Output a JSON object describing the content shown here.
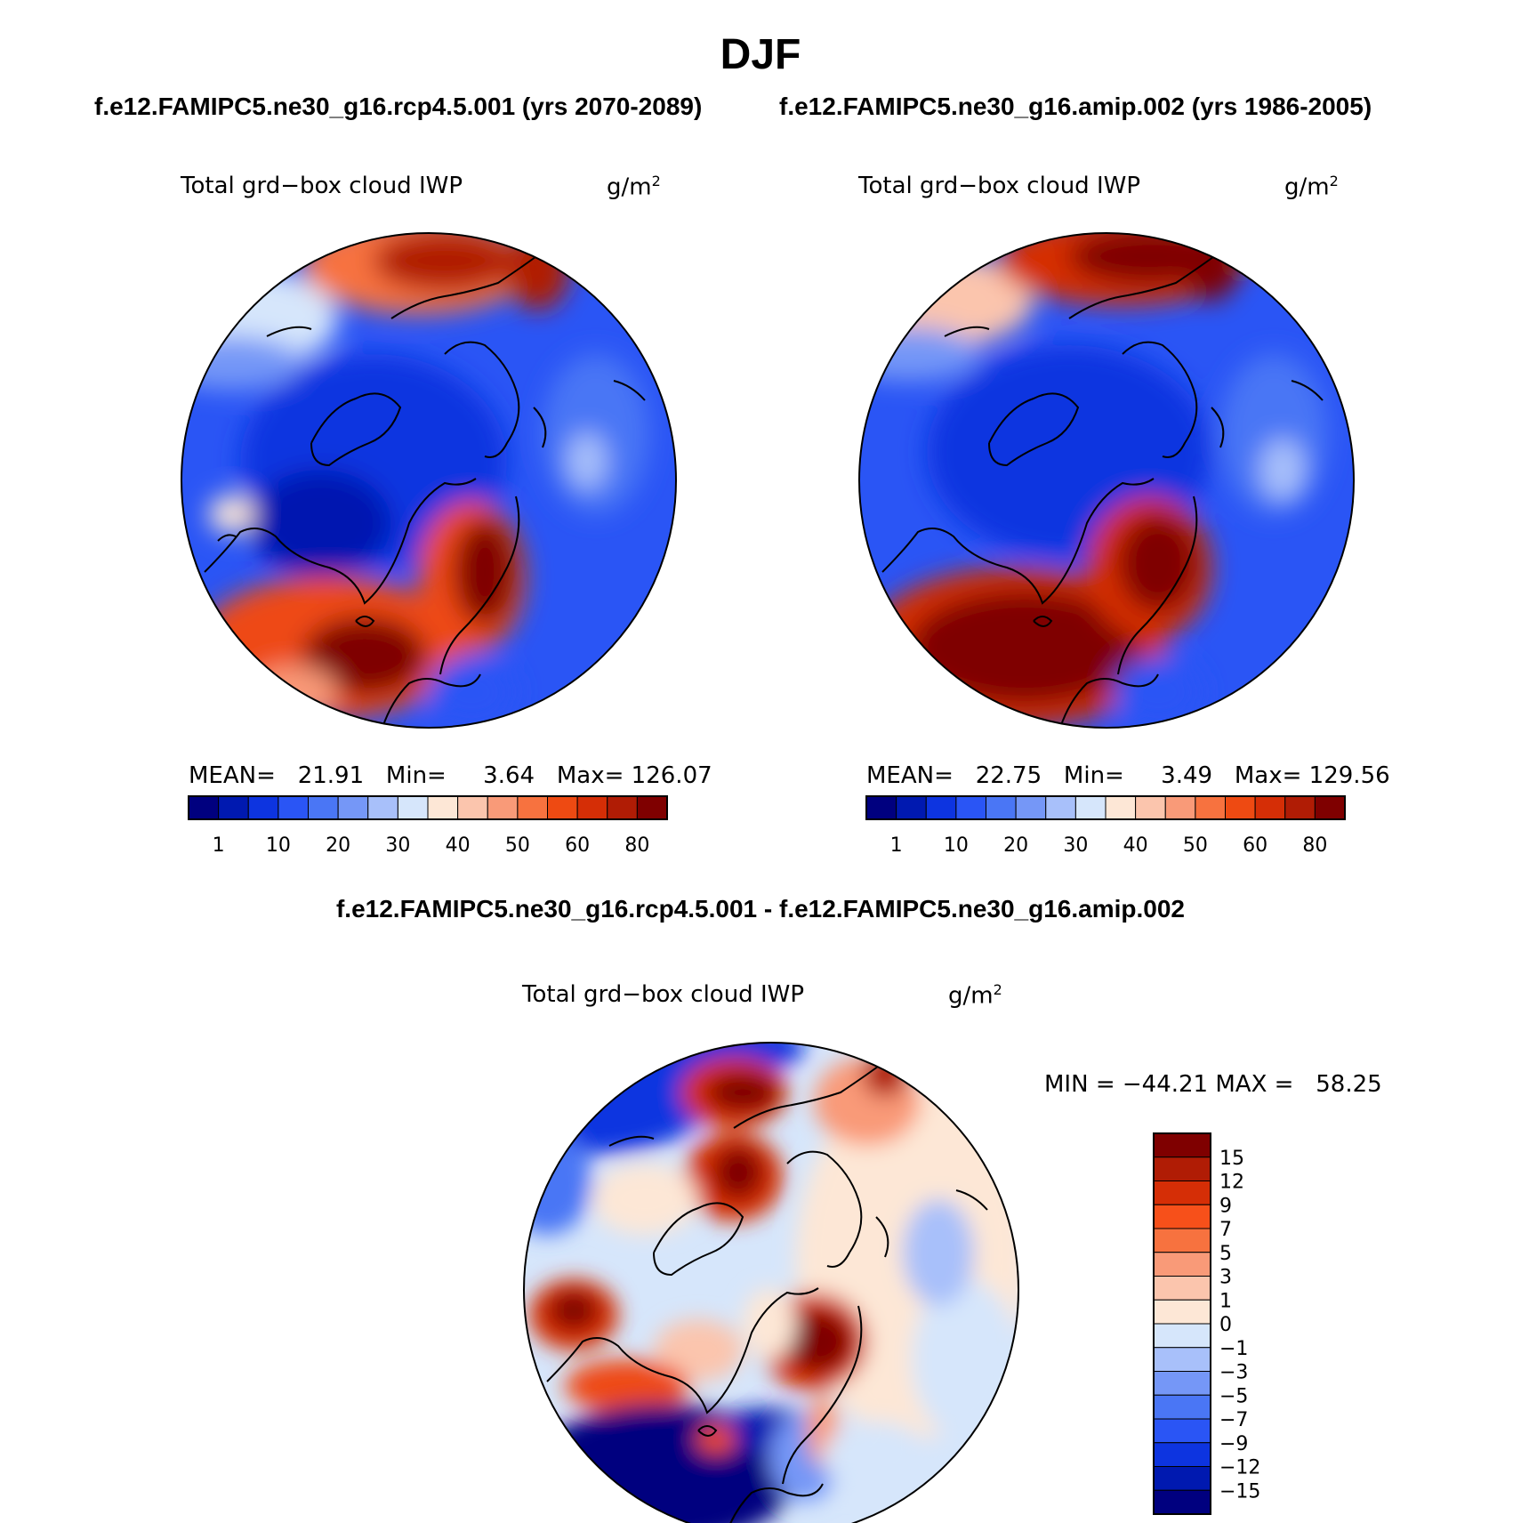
{
  "season": "DJF",
  "case_titles": {
    "left": "f.e12.FAMIPC5.ne30_g16.rcp4.5.001 (yrs 2070-2089)",
    "right": "f.e12.FAMIPC5.ne30_g16.amip.002 (yrs 1986-2005)"
  },
  "diff_title": "f.e12.FAMIPC5.ne30_g16.rcp4.5.001 - f.e12.FAMIPC5.ne30_g16.amip.002",
  "panels": {
    "left": {
      "variable": "Total grd−box cloud IWP",
      "units_base": "g/m",
      "units_exp": "2",
      "mean_label": "MEAN=",
      "mean": "21.91",
      "min_label": "Min=",
      "min": "3.64",
      "max_label": "Max=",
      "max": "126.07"
    },
    "right": {
      "variable": "Total grd−box cloud IWP",
      "units_base": "g/m",
      "units_exp": "2",
      "mean_label": "MEAN=",
      "mean": "22.75",
      "min_label": "Min=",
      "min": "3.49",
      "max_label": "Max=",
      "max": "129.56"
    },
    "diff": {
      "variable": "Total grd−box cloud IWP",
      "units_base": "g/m",
      "units_exp": "2",
      "min_label": "MIN =",
      "min": "−44.21",
      "max_label": "MAX =",
      "max": "58.25"
    }
  },
  "colorbar_abs": {
    "labels": [
      "1",
      "10",
      "20",
      "30",
      "40",
      "50",
      "60",
      "80"
    ],
    "colors": [
      "#00007f",
      "#0019b0",
      "#0d34e0",
      "#2a55f5",
      "#4a76f5",
      "#7597f7",
      "#a8c0fa",
      "#d6e6fb",
      "#fde7d6",
      "#fbc5ad",
      "#f99a78",
      "#f7723f",
      "#ee4a12",
      "#d52e06",
      "#b01c05",
      "#7f0000"
    ]
  },
  "colorbar_diff": {
    "labels": [
      "15",
      "12",
      "9",
      "7",
      "5",
      "3",
      "1",
      "0",
      "−1",
      "−3",
      "−5",
      "−7",
      "−9",
      "−12",
      "−15"
    ],
    "colors": [
      "#7f0000",
      "#b01c05",
      "#d52e06",
      "#f7501a",
      "#f7723f",
      "#f99a78",
      "#fbc5ad",
      "#fde7d6",
      "#d6e6fb",
      "#a8c0fa",
      "#7597f7",
      "#4a76f5",
      "#2a55f5",
      "#0d34e0",
      "#0019b0",
      "#00007f"
    ]
  }
}
